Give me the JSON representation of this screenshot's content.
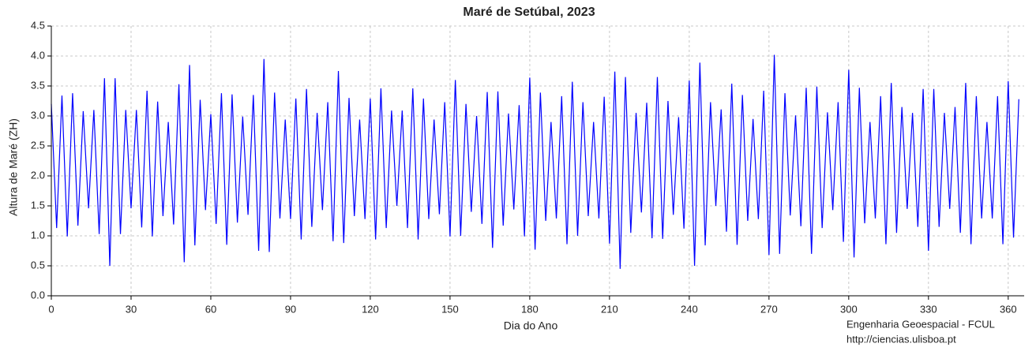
{
  "chart_data": {
    "type": "line",
    "title": "Maré de Setúbal, 2023",
    "x_label": "Dia do Ano",
    "y_label": "Altura de Maré (ZH)",
    "footer": [
      "Engenharia Geoespacial - FCUL",
      "http://ciencias.ulisboa.pt"
    ],
    "xlim": [
      0,
      366
    ],
    "ylim": [
      0,
      4.5
    ],
    "xticks": [
      0,
      30,
      60,
      90,
      120,
      150,
      180,
      210,
      240,
      270,
      300,
      330,
      360
    ],
    "yticks": [
      {
        "value": 0,
        "label": "0.0"
      },
      0.5,
      {
        "value": 1,
        "label": "1.0"
      },
      1.5,
      {
        "value": 2,
        "label": "2.0"
      },
      2.5,
      {
        "value": 3,
        "label": "3.0"
      },
      3.5,
      {
        "value": 4,
        "label": "4.0"
      },
      4.5
    ],
    "grid": true,
    "x": [
      0,
      2,
      4,
      6,
      8,
      10,
      12,
      14,
      16,
      18,
      20,
      22,
      24,
      26,
      28,
      30,
      32,
      34,
      36,
      38,
      40,
      42,
      44,
      46,
      48,
      50,
      52,
      54,
      56,
      58,
      60,
      62,
      64,
      66,
      68,
      70,
      72,
      74,
      76,
      78,
      80,
      82,
      84,
      86,
      88,
      90,
      92,
      94,
      96,
      98,
      100,
      102,
      104,
      106,
      108,
      110,
      112,
      114,
      116,
      118,
      120,
      122,
      124,
      126,
      128,
      130,
      132,
      134,
      136,
      138,
      140,
      142,
      144,
      146,
      148,
      150,
      152,
      154,
      156,
      158,
      160,
      162,
      164,
      166,
      168,
      170,
      172,
      174,
      176,
      178,
      180,
      182,
      184,
      186,
      188,
      190,
      192,
      194,
      196,
      198,
      200,
      202,
      204,
      206,
      208,
      210,
      212,
      214,
      216,
      218,
      220,
      222,
      224,
      226,
      228,
      230,
      232,
      234,
      236,
      238,
      240,
      242,
      244,
      246,
      248,
      250,
      252,
      254,
      256,
      258,
      260,
      262,
      264,
      266,
      268,
      270,
      272,
      274,
      276,
      278,
      280,
      282,
      284,
      286,
      288,
      290,
      292,
      294,
      296,
      298,
      300,
      302,
      304,
      306,
      308,
      310,
      312,
      314,
      316,
      318,
      320,
      322,
      324,
      326,
      328,
      330,
      332,
      334,
      336,
      338,
      340,
      342,
      344,
      346,
      348,
      350,
      352,
      354,
      356,
      358,
      360,
      362,
      364
    ],
    "series": [
      {
        "color": "#0000ff",
        "values": [
          3.2,
          1.13,
          3.34,
          0.99,
          3.38,
          1.17,
          3.08,
          1.46,
          3.1,
          1.03,
          3.63,
          0.5,
          3.63,
          1.03,
          3.1,
          1.46,
          3.1,
          1.14,
          3.42,
          0.99,
          3.24,
          1.33,
          2.9,
          1.19,
          3.53,
          0.56,
          3.85,
          0.84,
          3.27,
          1.43,
          3.03,
          1.2,
          3.38,
          0.85,
          3.36,
          1.22,
          2.99,
          1.35,
          3.35,
          0.75,
          3.95,
          0.73,
          3.39,
          1.29,
          2.94,
          1.28,
          3.29,
          0.94,
          3.45,
          1.15,
          3.05,
          1.43,
          3.23,
          0.91,
          3.75,
          0.88,
          3.3,
          1.33,
          2.94,
          1.28,
          3.29,
          0.94,
          3.46,
          1.13,
          3.09,
          1.5,
          3.09,
          1.13,
          3.46,
          0.94,
          3.29,
          1.28,
          2.94,
          1.36,
          3.23,
          0.99,
          3.6,
          1.0,
          3.2,
          1.4,
          3.0,
          1.2,
          3.4,
          0.8,
          3.41,
          1.17,
          3.04,
          1.44,
          3.18,
          0.99,
          3.64,
          0.77,
          3.39,
          1.25,
          2.9,
          1.29,
          3.33,
          0.86,
          3.57,
          1.0,
          3.23,
          1.33,
          2.9,
          1.29,
          3.32,
          0.87,
          3.74,
          0.45,
          3.65,
          1.05,
          3.05,
          1.39,
          3.22,
          0.96,
          3.65,
          0.95,
          3.25,
          1.35,
          2.98,
          1.12,
          3.59,
          0.5,
          3.89,
          0.84,
          3.23,
          1.5,
          3.11,
          1.07,
          3.54,
          0.85,
          3.35,
          1.25,
          2.95,
          1.28,
          3.42,
          0.68,
          4.02,
          0.7,
          3.38,
          1.34,
          3.01,
          1.16,
          3.47,
          0.7,
          3.49,
          1.13,
          3.06,
          1.43,
          3.23,
          0.9,
          3.77,
          0.64,
          3.47,
          1.21,
          2.9,
          1.29,
          3.33,
          0.86,
          3.55,
          1.05,
          3.15,
          1.45,
          3.05,
          1.15,
          3.45,
          0.75,
          3.45,
          1.15,
          3.05,
          1.45,
          3.15,
          1.05,
          3.55,
          0.86,
          3.33,
          1.29,
          2.9,
          1.29,
          3.33,
          0.86,
          3.58,
          0.97,
          3.28
        ]
      }
    ]
  }
}
